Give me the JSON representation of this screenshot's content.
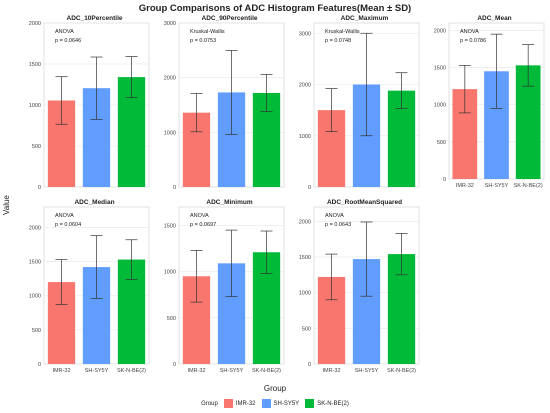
{
  "title": "Group Comparisons of ADC Histogram Features(Mean ± SD)",
  "ylabel": "Value",
  "xlabel": "Group",
  "legend": {
    "title": "Group",
    "entries": [
      {
        "name": "IMR-32",
        "color": "#F8766D"
      },
      {
        "name": "SH-SY5Y",
        "color": "#619CFF"
      },
      {
        "name": "SK-N-BE(2)",
        "color": "#00BA38"
      }
    ]
  },
  "chart_data": [
    {
      "type": "bar",
      "title": "ADC_10Percentile",
      "test": "ANOVA",
      "pvalue": "p = 0.0646",
      "categories": [
        "IMR-32",
        "SH-SY5Y",
        "SK-N-BE(2)"
      ],
      "values": [
        1055,
        1205,
        1340
      ],
      "sd": [
        290,
        380,
        250
      ],
      "ylim": [
        0,
        2000
      ],
      "yticks": [
        0,
        500,
        1000,
        1500,
        2000
      ],
      "show_xticks": false
    },
    {
      "type": "bar",
      "title": "ADC_90Percentile",
      "test": "Kruskal-Wallis",
      "pvalue": "p = 0.0753",
      "categories": [
        "IMR-32",
        "SH-SY5Y",
        "SK-N-BE(2)"
      ],
      "values": [
        1360,
        1730,
        1720
      ],
      "sd": [
        350,
        770,
        340
      ],
      "ylim": [
        0,
        3000
      ],
      "yticks": [
        0,
        1000,
        2000,
        3000
      ],
      "show_xticks": false
    },
    {
      "type": "bar",
      "title": "ADC_Maximum",
      "test": "Kruskal-Wallis",
      "pvalue": "p = 0.0748",
      "categories": [
        "IMR-32",
        "SH-SY5Y",
        "SK-N-BE(2)"
      ],
      "values": [
        1500,
        2000,
        1880
      ],
      "sd": [
        420,
        1000,
        350
      ],
      "ylim": [
        0,
        3200
      ],
      "yticks": [
        0,
        1000,
        2000,
        3000
      ],
      "show_xticks": false
    },
    {
      "type": "bar",
      "title": "ADC_Mean",
      "test": "ANOVA",
      "pvalue": "p = 0.0786",
      "categories": [
        "IMR-32",
        "SH-SY5Y",
        "SK-N-BE(2)"
      ],
      "values": [
        1210,
        1450,
        1530
      ],
      "sd": [
        320,
        500,
        280
      ],
      "ylim": [
        0,
        2100
      ],
      "yticks": [
        0,
        500,
        1000,
        1500,
        2000
      ],
      "show_xticks": true
    },
    {
      "type": "bar",
      "title": "ADC_Median",
      "test": "ANOVA",
      "pvalue": "p = 0.0604",
      "categories": [
        "IMR-32",
        "SH-SY5Y",
        "SK-N-BE(2)"
      ],
      "values": [
        1200,
        1420,
        1530
      ],
      "sd": [
        330,
        460,
        290
      ],
      "ylim": [
        0,
        2300
      ],
      "yticks": [
        0,
        500,
        1000,
        1500,
        2000
      ],
      "show_xticks": true
    },
    {
      "type": "bar",
      "title": "ADC_Minimum",
      "test": "ANOVA",
      "pvalue": "p = 0.0697",
      "categories": [
        "IMR-32",
        "SH-SY5Y",
        "SK-N-BE(2)"
      ],
      "values": [
        950,
        1090,
        1210
      ],
      "sd": [
        280,
        360,
        230
      ],
      "ylim": [
        0,
        1700
      ],
      "yticks": [
        0,
        500,
        1000,
        1500
      ],
      "show_xticks": true
    },
    {
      "type": "bar",
      "title": "ADC_RootMeanSquared",
      "test": "ANOVA",
      "pvalue": "p = 0.0643",
      "categories": [
        "IMR-32",
        "SH-SY5Y",
        "SK-N-BE(2)"
      ],
      "values": [
        1220,
        1470,
        1540
      ],
      "sd": [
        320,
        520,
        290
      ],
      "ylim": [
        0,
        2200
      ],
      "yticks": [
        0,
        500,
        1000,
        1500,
        2000
      ],
      "show_xticks": true
    }
  ]
}
